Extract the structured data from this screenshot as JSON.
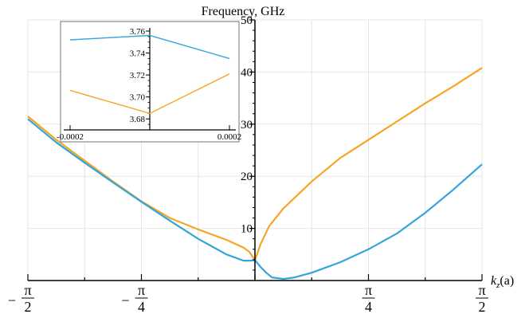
{
  "chart_data": [
    {
      "type": "line",
      "ylabel": "Frequency, GHz",
      "xlabel_main": "k",
      "xlabel_sub": "z",
      "xlabel_suffix": "(a)",
      "xlim": [
        -1.5708,
        1.5708
      ],
      "ylim": [
        0,
        50
      ],
      "yticks": [
        10,
        20,
        30,
        40,
        50
      ],
      "xticks": [
        {
          "value": -1.5708,
          "sign": "−",
          "num": "π",
          "den": "2"
        },
        {
          "value": -0.7854,
          "sign": "−",
          "num": "π",
          "den": "4"
        },
        {
          "value": 0.7854,
          "sign": "",
          "num": "π",
          "den": "4"
        },
        {
          "value": 1.5708,
          "sign": "",
          "num": "π",
          "den": "2"
        }
      ],
      "grid": true,
      "series": [
        {
          "color": "#f5a623",
          "x": [
            -1.5708,
            -1.3744,
            -1.1781,
            -0.9817,
            -0.7854,
            -0.589,
            -0.3927,
            -0.1963,
            -0.0785,
            -0.0393,
            0.0,
            0.0393,
            0.1,
            0.1963,
            0.3927,
            0.589,
            0.7854,
            0.9817,
            1.1781,
            1.3744,
            1.5708
          ],
          "y": [
            31.5,
            27.0,
            23.0,
            19.0,
            15.2,
            12.0,
            9.8,
            7.8,
            6.3,
            5.5,
            3.9,
            7.0,
            10.5,
            13.8,
            19.0,
            23.5,
            27.0,
            30.5,
            34.0,
            37.3,
            40.8
          ]
        },
        {
          "color": "#34a5d8",
          "x": [
            -1.5708,
            -1.3744,
            -1.1781,
            -0.9817,
            -0.7854,
            -0.589,
            -0.3927,
            -0.1963,
            -0.0785,
            -0.0393,
            0.0,
            0.0393,
            0.0785,
            0.1178,
            0.1963,
            0.2749,
            0.3927,
            0.589,
            0.7854,
            0.9817,
            1.1781,
            1.3744,
            1.5708
          ],
          "y": [
            31.0,
            26.5,
            22.6,
            18.8,
            15.1,
            11.5,
            8.0,
            5.0,
            3.8,
            3.8,
            3.9,
            2.6,
            1.5,
            0.6,
            0.3,
            0.6,
            1.5,
            3.5,
            6.0,
            9.0,
            13.0,
            17.5,
            22.3
          ]
        }
      ]
    },
    {
      "type": "line",
      "role": "inset",
      "xlim": [
        -0.0002,
        0.0002
      ],
      "ylim": [
        3.67,
        3.76
      ],
      "yticks": [
        "3.68",
        "3.70",
        "3.72",
        "3.74",
        "3.76"
      ],
      "xticks": [
        "-0.0002",
        "0.0002"
      ],
      "series": [
        {
          "color": "#34a5d8",
          "x": [
            -0.0002,
            0.0,
            0.0002
          ],
          "y": [
            3.752,
            3.756,
            3.735
          ]
        },
        {
          "color": "#f5a623",
          "x": [
            -0.0002,
            0.0,
            0.0002
          ],
          "y": [
            3.706,
            3.685,
            3.721
          ]
        }
      ]
    }
  ]
}
